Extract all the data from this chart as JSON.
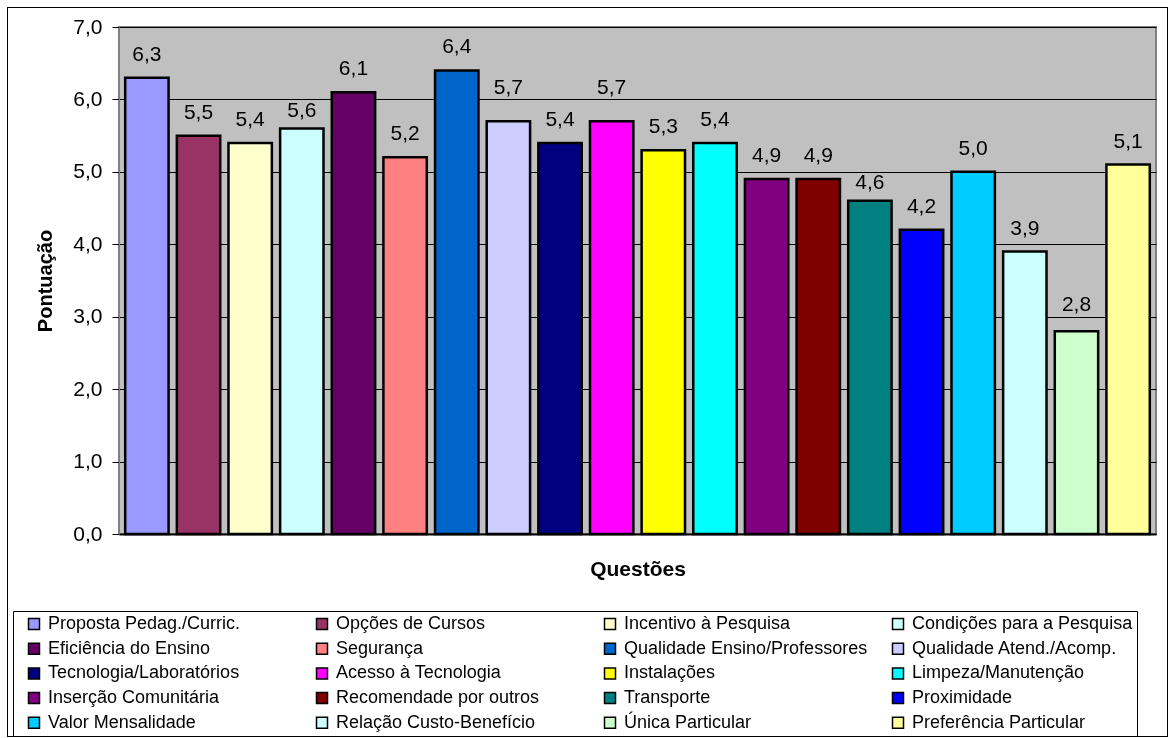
{
  "chart_data": {
    "type": "bar",
    "xlabel": "Questões",
    "ylabel": "Pontuação",
    "categories": [
      null
    ],
    "series": [
      {
        "name": "Proposta Pedag./Curric.",
        "color": "#9999ff",
        "values": [
          6.3
        ],
        "value_labels": [
          "6,3"
        ]
      },
      {
        "name": "Opções de Cursos",
        "color": "#993366",
        "values": [
          5.5
        ],
        "value_labels": [
          "5,5"
        ]
      },
      {
        "name": "Incentivo à Pesquisa",
        "color": "#ffffcc",
        "values": [
          5.4
        ],
        "value_labels": [
          "5,4"
        ]
      },
      {
        "name": "Condições para a Pesquisa",
        "color": "#ccffff",
        "values": [
          5.6
        ],
        "value_labels": [
          "5,6"
        ]
      },
      {
        "name": "Eficiência do Ensino",
        "color": "#660066",
        "values": [
          6.1
        ],
        "value_labels": [
          "6,1"
        ]
      },
      {
        "name": "Segurança",
        "color": "#ff8080",
        "values": [
          5.2
        ],
        "value_labels": [
          "5,2"
        ]
      },
      {
        "name": "Qualidade Ensino/Professores",
        "color": "#0066cc",
        "values": [
          6.4
        ],
        "value_labels": [
          "6,4"
        ]
      },
      {
        "name": "Qualidade Atend./Acomp.",
        "color": "#ccccff",
        "values": [
          5.7
        ],
        "value_labels": [
          "5,7"
        ]
      },
      {
        "name": "Tecnologia/Laboratórios",
        "color": "#000080",
        "values": [
          5.4
        ],
        "value_labels": [
          "5,4"
        ]
      },
      {
        "name": "Acesso à Tecnologia",
        "color": "#ff00ff",
        "values": [
          5.7
        ],
        "value_labels": [
          "5,7"
        ]
      },
      {
        "name": "Instalações",
        "color": "#ffff00",
        "values": [
          5.3
        ],
        "value_labels": [
          "5,3"
        ]
      },
      {
        "name": "Limpeza/Manutenção",
        "color": "#00ffff",
        "values": [
          5.4
        ],
        "value_labels": [
          "5,4"
        ]
      },
      {
        "name": "Inserção Comunitária",
        "color": "#800080",
        "values": [
          4.9
        ],
        "value_labels": [
          "4,9"
        ]
      },
      {
        "name": "Recomendade por outros",
        "color": "#800000",
        "values": [
          4.9
        ],
        "value_labels": [
          "4,9"
        ]
      },
      {
        "name": "Transporte",
        "color": "#008080",
        "values": [
          4.6
        ],
        "value_labels": [
          "4,6"
        ]
      },
      {
        "name": "Proximidade",
        "color": "#0000ff",
        "values": [
          4.2
        ],
        "value_labels": [
          "4,2"
        ]
      },
      {
        "name": "Valor Mensalidade",
        "color": "#00ccff",
        "values": [
          5.0
        ],
        "value_labels": [
          "5,0"
        ]
      },
      {
        "name": "Relação Custo-Benefício",
        "color": "#ccffff",
        "values": [
          3.9
        ],
        "value_labels": [
          "3,9"
        ]
      },
      {
        "name": "Única Particular",
        "color": "#ccffcc",
        "values": [
          2.8
        ],
        "value_labels": [
          "2,8"
        ]
      },
      {
        "name": "Preferência Particular",
        "color": "#ffff99",
        "values": [
          5.1
        ],
        "value_labels": [
          "5,1"
        ]
      }
    ],
    "ylim": [
      0,
      7
    ],
    "yticks": [
      {
        "value": 0,
        "label": "0,0"
      },
      {
        "value": 1,
        "label": "1,0"
      },
      {
        "value": 2,
        "label": "2,0"
      },
      {
        "value": 3,
        "label": "3,0"
      },
      {
        "value": 4,
        "label": "4,0"
      },
      {
        "value": 5,
        "label": "5,0"
      },
      {
        "value": 6,
        "label": "6,0"
      },
      {
        "value": 7,
        "label": "7,0"
      }
    ],
    "grid": "y",
    "legend": "bottom"
  }
}
